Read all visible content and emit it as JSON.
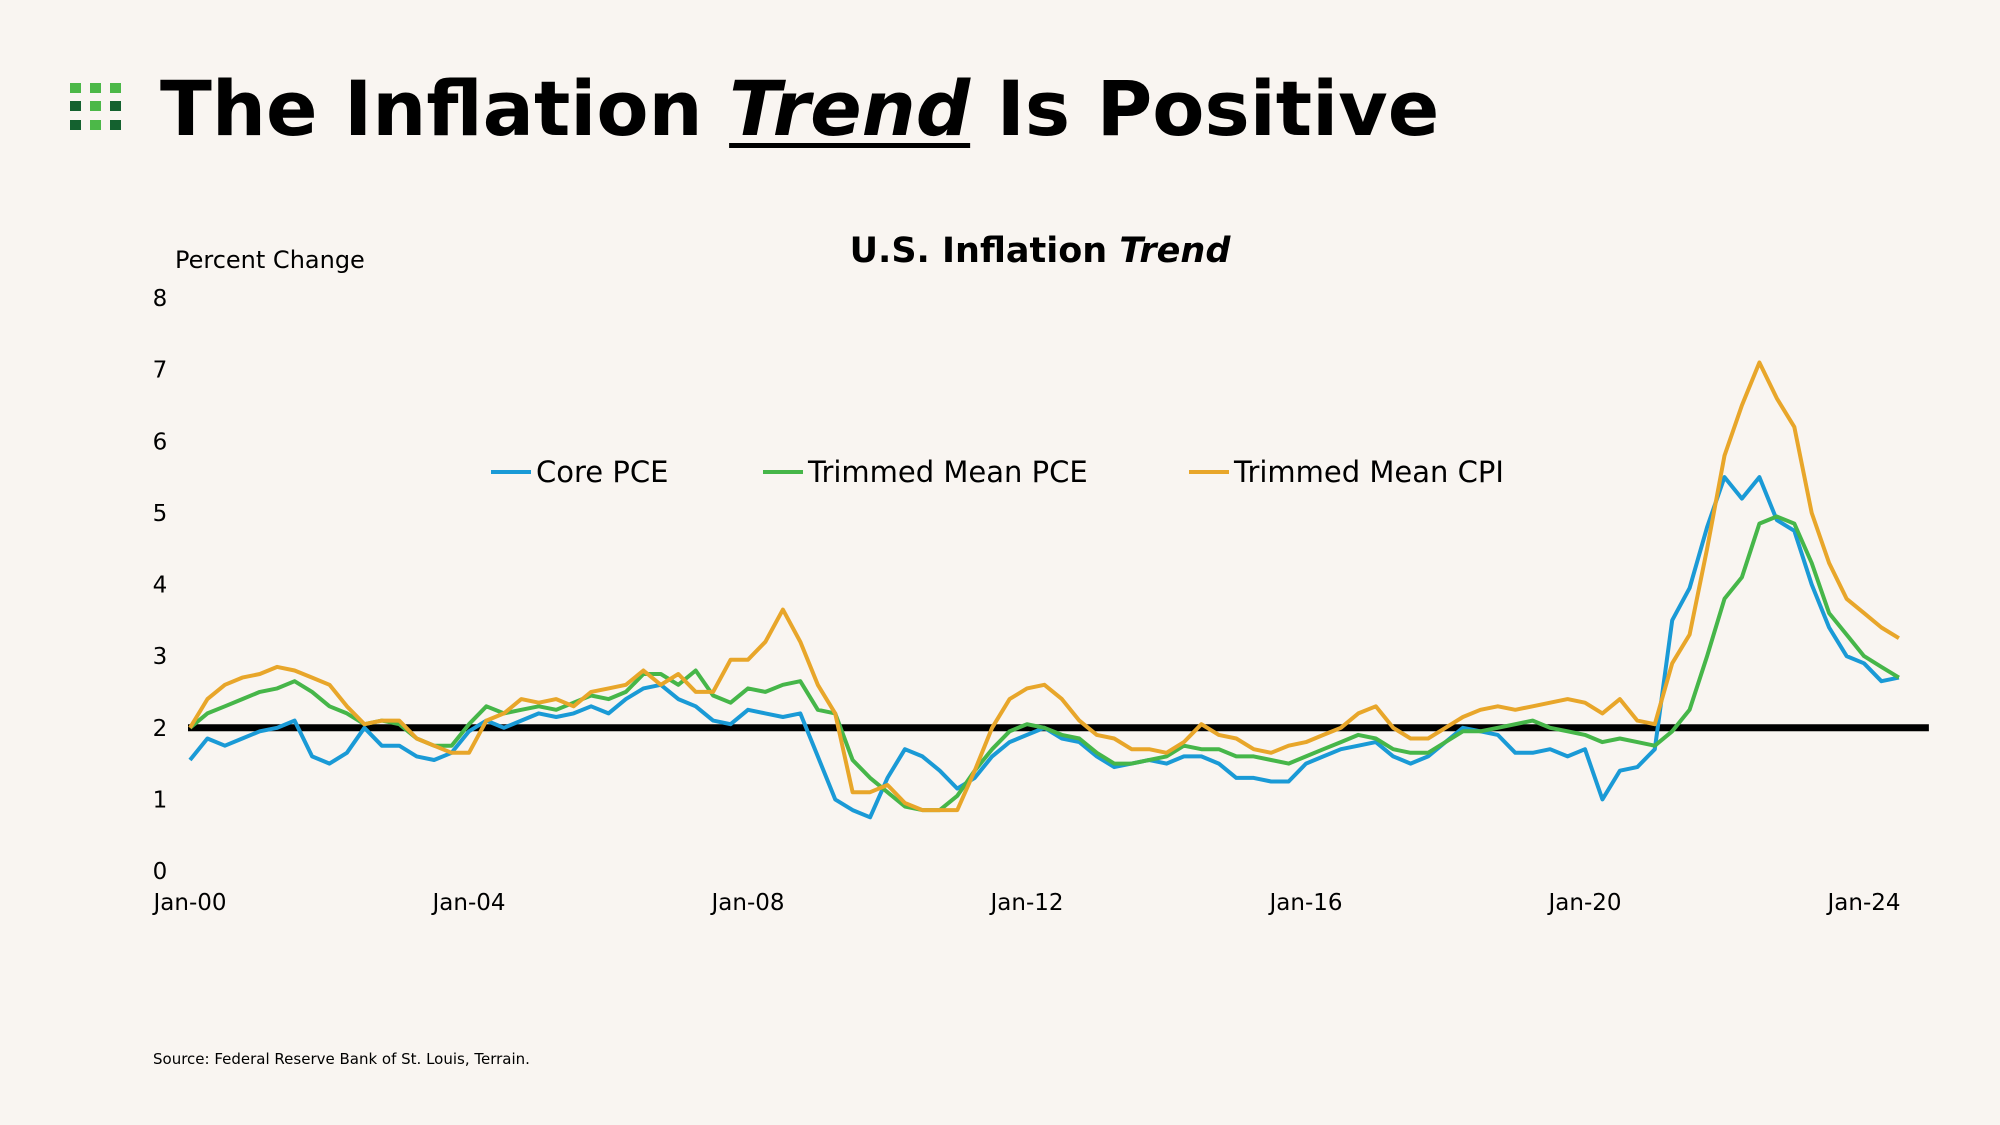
{
  "header": {
    "title_pre": "The Inflation ",
    "title_em": "Trend",
    "title_post": " Is Positive",
    "logo_colors": [
      "#4cb848",
      "#14612f"
    ]
  },
  "source": "Source: Federal Reserve Bank of St. Louis, Terrain.",
  "chart_data": {
    "type": "line",
    "title_pre": "U.S. Inflation ",
    "title_em": "Trend",
    "ylabel": "Percent Change",
    "xlabel": "",
    "ylim": [
      0,
      8
    ],
    "yticks": [
      "0",
      "1",
      "2",
      "3",
      "4",
      "5",
      "6",
      "7",
      "8"
    ],
    "xticks": [
      "Jan-00",
      "Jan-04",
      "Jan-08",
      "Jan-12",
      "Jan-16",
      "Jan-20",
      "Jan-24"
    ],
    "x_start": "2000-Q1",
    "x_frequency": "quarterly",
    "grid": false,
    "legend_placement": "top-center",
    "reference_line": {
      "y": 2,
      "color": "#000000"
    },
    "series": [
      {
        "name": "Core PCE",
        "color": "#1a9ad6",
        "values": [
          1.55,
          1.85,
          1.75,
          1.85,
          1.95,
          2.0,
          2.1,
          1.6,
          1.5,
          1.65,
          2.0,
          1.75,
          1.75,
          1.6,
          1.55,
          1.65,
          1.95,
          2.1,
          2.0,
          2.1,
          2.2,
          2.15,
          2.2,
          2.3,
          2.2,
          2.4,
          2.55,
          2.6,
          2.4,
          2.3,
          2.1,
          2.05,
          2.25,
          2.2,
          2.15,
          2.2,
          1.6,
          1.0,
          0.85,
          0.75,
          1.3,
          1.7,
          1.6,
          1.4,
          1.15,
          1.3,
          1.6,
          1.8,
          1.9,
          2.0,
          1.85,
          1.8,
          1.6,
          1.45,
          1.5,
          1.55,
          1.5,
          1.6,
          1.6,
          1.5,
          1.3,
          1.3,
          1.25,
          1.25,
          1.5,
          1.6,
          1.7,
          1.75,
          1.8,
          1.6,
          1.5,
          1.6,
          1.8,
          2.0,
          1.95,
          1.9,
          1.65,
          1.65,
          1.7,
          1.6,
          1.7,
          1.0,
          1.4,
          1.45,
          1.7,
          3.5,
          3.95,
          4.8,
          5.5,
          5.2,
          5.5,
          4.9,
          4.75,
          4.0,
          3.4,
          3.0,
          2.9,
          2.65,
          2.7
        ]
      },
      {
        "name": "Trimmed Mean PCE",
        "color": "#46b649",
        "values": [
          2.0,
          2.2,
          2.3,
          2.4,
          2.5,
          2.55,
          2.65,
          2.5,
          2.3,
          2.2,
          2.05,
          2.1,
          2.05,
          1.85,
          1.75,
          1.75,
          2.05,
          2.3,
          2.2,
          2.25,
          2.3,
          2.25,
          2.35,
          2.45,
          2.4,
          2.5,
          2.75,
          2.75,
          2.6,
          2.8,
          2.45,
          2.35,
          2.55,
          2.5,
          2.6,
          2.65,
          2.25,
          2.2,
          1.55,
          1.3,
          1.1,
          0.9,
          0.85,
          0.85,
          1.05,
          1.4,
          1.7,
          1.95,
          2.05,
          2.0,
          1.9,
          1.85,
          1.65,
          1.5,
          1.5,
          1.55,
          1.6,
          1.75,
          1.7,
          1.7,
          1.6,
          1.6,
          1.55,
          1.5,
          1.6,
          1.7,
          1.8,
          1.9,
          1.85,
          1.7,
          1.65,
          1.65,
          1.8,
          1.95,
          1.95,
          2.0,
          2.05,
          2.1,
          2.0,
          1.95,
          1.9,
          1.8,
          1.85,
          1.8,
          1.75,
          1.95,
          2.25,
          3.0,
          3.8,
          4.1,
          4.85,
          4.95,
          4.85,
          4.3,
          3.6,
          3.3,
          3.0,
          2.85,
          2.7
        ]
      },
      {
        "name": "Trimmed Mean CPI",
        "color": "#e8a62a",
        "values": [
          2.0,
          2.4,
          2.6,
          2.7,
          2.75,
          2.85,
          2.8,
          2.7,
          2.6,
          2.3,
          2.05,
          2.1,
          2.1,
          1.85,
          1.75,
          1.65,
          1.65,
          2.1,
          2.2,
          2.4,
          2.35,
          2.4,
          2.3,
          2.5,
          2.55,
          2.6,
          2.8,
          2.6,
          2.75,
          2.5,
          2.5,
          2.95,
          2.95,
          3.2,
          3.65,
          3.2,
          2.6,
          2.2,
          1.1,
          1.1,
          1.2,
          0.95,
          0.85,
          0.85,
          0.85,
          1.4,
          2.0,
          2.4,
          2.55,
          2.6,
          2.4,
          2.1,
          1.9,
          1.85,
          1.7,
          1.7,
          1.65,
          1.8,
          2.05,
          1.9,
          1.85,
          1.7,
          1.65,
          1.75,
          1.8,
          1.9,
          2.0,
          2.2,
          2.3,
          2.0,
          1.85,
          1.85,
          2.0,
          2.15,
          2.25,
          2.3,
          2.25,
          2.3,
          2.35,
          2.4,
          2.35,
          2.2,
          2.4,
          2.1,
          2.05,
          2.9,
          3.3,
          4.5,
          5.8,
          6.5,
          7.1,
          6.6,
          6.2,
          5.0,
          4.3,
          3.8,
          3.6,
          3.4,
          3.25
        ]
      }
    ]
  }
}
